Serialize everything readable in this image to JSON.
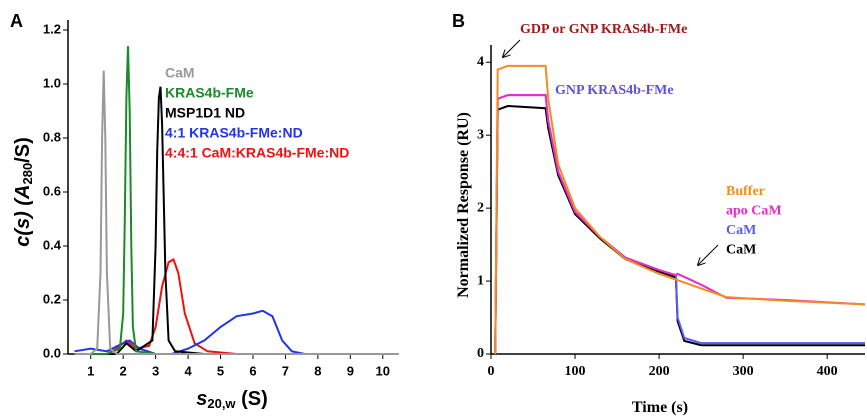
{
  "chart_data": [
    {
      "type": "line",
      "panel_label": "A",
      "xlabel": {
        "text": "s",
        "sub": "20,w",
        "suffix": " (S)"
      },
      "ylabel": {
        "text": "c(s) (A",
        "sub": "280",
        "suffix": "/S)"
      },
      "xlim": [
        0.3,
        10.5
      ],
      "ylim": [
        0,
        1.2
      ],
      "xticks": [
        1,
        2,
        3,
        4,
        5,
        6,
        7,
        8,
        9,
        10
      ],
      "yticks": [
        {
          "value": 0,
          "label": "0.0"
        },
        0.2,
        0.4,
        0.6,
        0.8,
        {
          "value": 1,
          "label": "1.0"
        },
        1.2
      ],
      "legend": "upper-left",
      "series": [
        {
          "name": "CaM",
          "color": "#999999",
          "x": [
            0.5,
            1.0,
            1.2,
            1.3,
            1.35,
            1.4,
            1.45,
            1.5,
            1.6,
            1.8,
            2.5,
            10.5
          ],
          "values": [
            0,
            0,
            0.02,
            0.3,
            0.8,
            1.05,
            0.8,
            0.3,
            0.02,
            0,
            0,
            0
          ]
        },
        {
          "name": "KRAS4b-FMe",
          "color": "#1a8a2a",
          "x": [
            0.5,
            1.5,
            1.9,
            2.0,
            2.05,
            2.1,
            2.15,
            2.2,
            2.25,
            2.3,
            2.4,
            3.0,
            10.5
          ],
          "values": [
            0,
            0,
            0.02,
            0.15,
            0.5,
            0.95,
            1.14,
            0.9,
            0.4,
            0.1,
            0.01,
            0,
            0
          ]
        },
        {
          "name": "MSP1D1 ND",
          "color": "#000000",
          "x": [
            0.5,
            1.8,
            2.1,
            2.4,
            2.9,
            3.0,
            3.05,
            3.1,
            3.15,
            3.2,
            3.3,
            3.4,
            3.6,
            4.5,
            10.5
          ],
          "values": [
            0,
            0,
            0.04,
            0.01,
            0.05,
            0.4,
            0.75,
            0.95,
            0.99,
            0.85,
            0.3,
            0.05,
            0.01,
            0,
            0
          ]
        },
        {
          "name": "4:1 KRAS4b-FMe:ND",
          "color": "#2233ee",
          "x": [
            0.5,
            1.0,
            1.5,
            2.0,
            2.2,
            2.5,
            3.0,
            3.5,
            4.0,
            4.5,
            5.0,
            5.5,
            6.0,
            6.3,
            6.6,
            6.9,
            7.2,
            7.6,
            8.5,
            10.5
          ],
          "values": [
            0.01,
            0.02,
            0.01,
            0.04,
            0.05,
            0.02,
            0,
            0,
            0.02,
            0.05,
            0.1,
            0.14,
            0.15,
            0.16,
            0.14,
            0.05,
            0.01,
            0,
            0,
            0
          ]
        },
        {
          "name": "4:4:1 CaM:KRAS4b-FMe:ND",
          "color": "#ee1111",
          "x": [
            0.5,
            1.5,
            1.8,
            2.1,
            2.4,
            2.8,
            3.0,
            3.2,
            3.4,
            3.55,
            3.7,
            3.9,
            4.2,
            4.6,
            5.5,
            10.5
          ],
          "values": [
            0,
            0,
            0.02,
            0.05,
            0.02,
            0.03,
            0.1,
            0.25,
            0.34,
            0.35,
            0.3,
            0.15,
            0.04,
            0.01,
            0,
            0
          ]
        }
      ]
    },
    {
      "type": "line",
      "panel_label": "B",
      "xlabel": {
        "text": "Time (s)"
      },
      "ylabel": {
        "text": "Normalized Response (RU)"
      },
      "xlim": [
        0,
        445
      ],
      "ylim": [
        0,
        4.1
      ],
      "xticks": [
        0,
        100,
        200,
        300,
        400
      ],
      "yticks": [
        0,
        1,
        2,
        3,
        4
      ],
      "legend": "right",
      "annotations": [
        {
          "text": "GDP  or GNP KRAS4b-FMe",
          "color": "#a01818"
        },
        {
          "text": "GNP KRAS4b-FMe",
          "color": "#6050e0"
        }
      ],
      "series": [
        {
          "name": "Buffer",
          "color": "#f28c1e",
          "x": [
            5,
            8,
            20,
            65,
            68,
            80,
            100,
            130,
            160,
            200,
            220,
            250,
            280,
            350,
            445
          ],
          "values": [
            0,
            3.9,
            3.95,
            3.95,
            3.5,
            2.6,
            2.0,
            1.6,
            1.3,
            1.1,
            1.02,
            0.9,
            0.78,
            0.73,
            0.68
          ]
        },
        {
          "name": "apo CaM",
          "color": "#e82cc8",
          "x": [
            5,
            8,
            20,
            65,
            68,
            80,
            100,
            130,
            160,
            200,
            220,
            222,
            250,
            280,
            350,
            445
          ],
          "values": [
            0,
            3.5,
            3.55,
            3.55,
            3.2,
            2.5,
            1.95,
            1.6,
            1.32,
            1.15,
            1.08,
            1.1,
            0.95,
            0.77,
            0.74,
            0.68
          ]
        },
        {
          "name": "CaM",
          "color": "#5b5bf0",
          "x": [
            5,
            8,
            20,
            65,
            68,
            80,
            100,
            130,
            160,
            200,
            220,
            222,
            230,
            250,
            445
          ],
          "values": [
            0,
            3.5,
            3.55,
            3.55,
            3.2,
            2.5,
            1.95,
            1.6,
            1.32,
            1.15,
            1.08,
            0.5,
            0.22,
            0.15,
            0.15
          ]
        },
        {
          "name": "CaM",
          "color": "#000000",
          "x": [
            5,
            8,
            20,
            65,
            68,
            80,
            100,
            130,
            160,
            200,
            220,
            222,
            230,
            250,
            445
          ],
          "values": [
            0,
            3.35,
            3.4,
            3.37,
            3.1,
            2.45,
            1.92,
            1.58,
            1.3,
            1.13,
            1.05,
            0.45,
            0.18,
            0.12,
            0.12
          ]
        }
      ]
    }
  ]
}
